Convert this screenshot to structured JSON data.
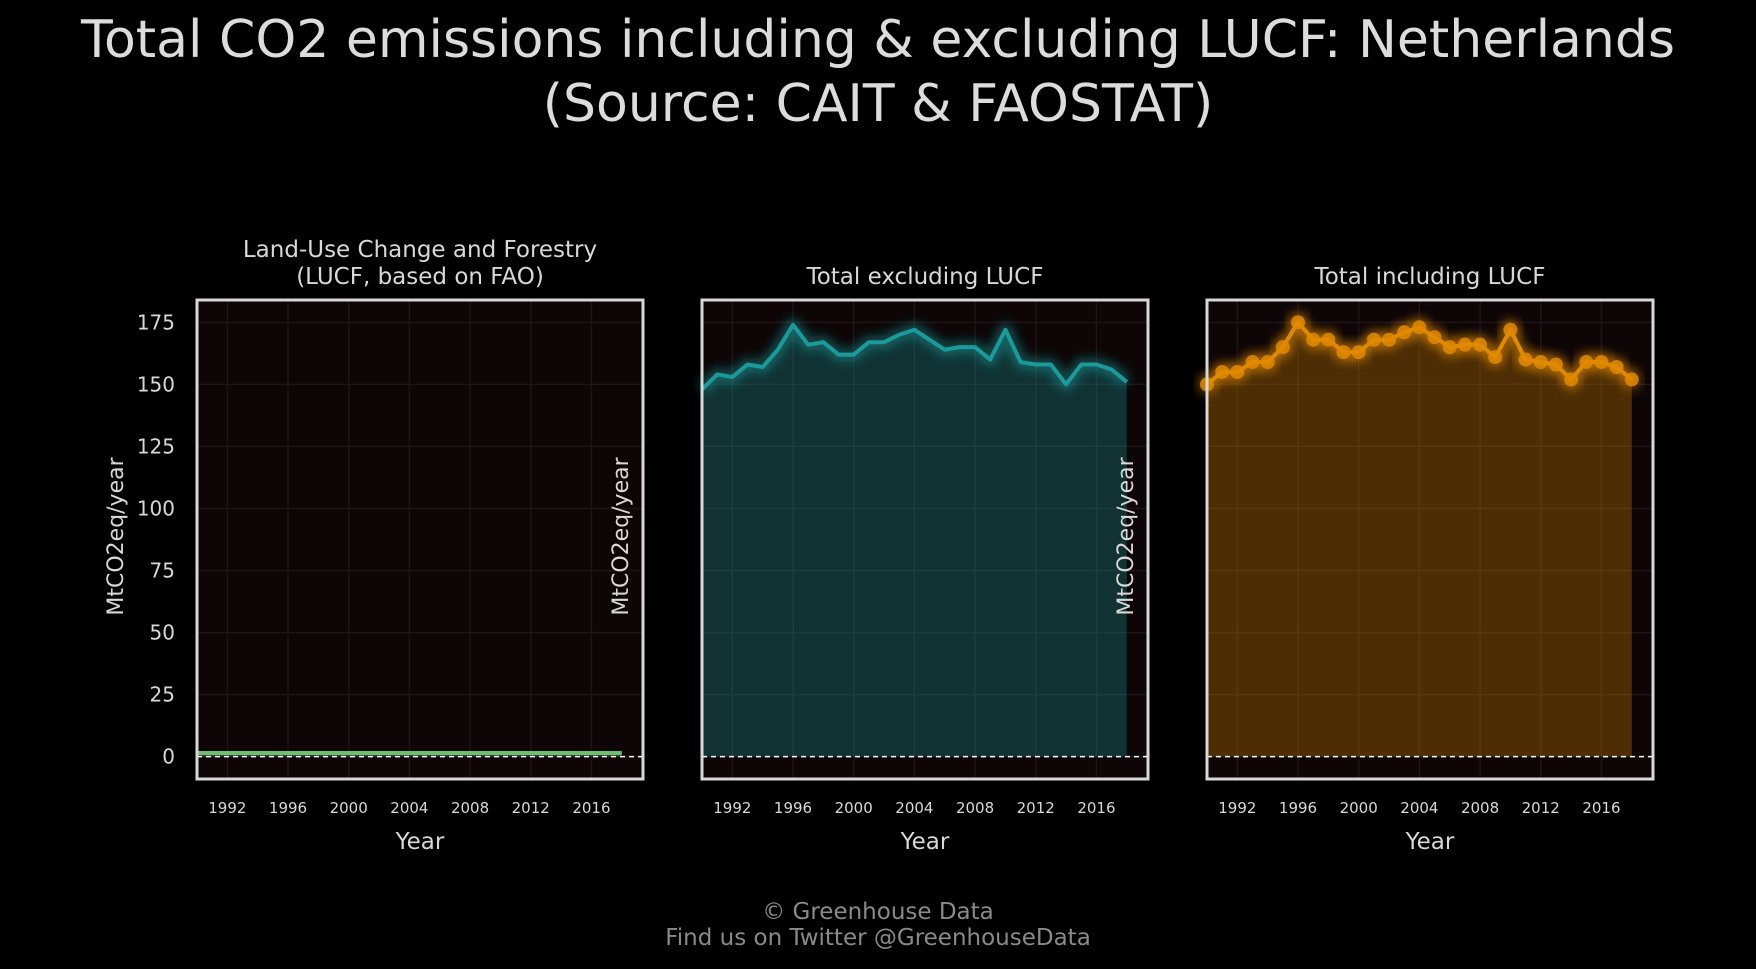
{
  "title_line1": "Total CO2 emissions including & excluding LUCF: Netherlands",
  "title_line2": "(Source: CAIT & FAOSTAT)",
  "footer": {
    "line1": "© Greenhouse Data",
    "line2": "Find us on Twitter @GreenhouseData"
  },
  "chart_data": [
    {
      "type": "area",
      "title": [
        "Land-Use Change and Forestry",
        "(LUCF, based on FAO)"
      ],
      "xlabel": "Year",
      "ylabel": "MtCO2eq/year",
      "x": [
        1990,
        1991,
        1992,
        1993,
        1994,
        1995,
        1996,
        1997,
        1998,
        1999,
        2000,
        2001,
        2002,
        2003,
        2004,
        2005,
        2006,
        2007,
        2008,
        2009,
        2010,
        2011,
        2012,
        2013,
        2014,
        2015,
        2016,
        2017,
        2018
      ],
      "values": [
        1.5,
        1.5,
        1.5,
        1.5,
        1.5,
        1.5,
        1.5,
        1.5,
        1.5,
        1.5,
        1.5,
        1.5,
        1.5,
        1.5,
        1.5,
        1.5,
        1.5,
        1.5,
        1.5,
        1.5,
        1.5,
        1.5,
        1.5,
        1.5,
        1.5,
        1.5,
        1.5,
        1.5,
        1.5
      ],
      "color": "#6fbf73",
      "markers": false,
      "xticks": [
        1992,
        1996,
        2000,
        2004,
        2008,
        2012,
        2016
      ],
      "yticks": [
        0,
        25,
        50,
        75,
        100,
        125,
        150,
        175
      ],
      "show_yticks": true,
      "ylim": [
        -9,
        184
      ],
      "xlim": [
        1990,
        2019.4
      ],
      "grid": true
    },
    {
      "type": "area",
      "title": [
        "Total excluding LUCF"
      ],
      "xlabel": "Year",
      "ylabel": "MtCO2eq/year",
      "x": [
        1990,
        1991,
        1992,
        1993,
        1994,
        1995,
        1996,
        1997,
        1998,
        1999,
        2000,
        2001,
        2002,
        2003,
        2004,
        2005,
        2006,
        2007,
        2008,
        2009,
        2010,
        2011,
        2012,
        2013,
        2014,
        2015,
        2016,
        2017,
        2018
      ],
      "values": [
        148,
        154,
        153,
        158,
        157,
        164,
        174,
        166,
        167,
        162,
        162,
        167,
        167,
        170,
        172,
        168,
        164,
        165,
        165,
        160,
        172,
        159,
        158,
        158,
        150,
        158,
        158,
        156,
        151
      ],
      "color": "#1a9a9a",
      "markers": false,
      "xticks": [
        1992,
        1996,
        2000,
        2004,
        2008,
        2012,
        2016
      ],
      "yticks": [
        0,
        25,
        50,
        75,
        100,
        125,
        150,
        175
      ],
      "show_yticks": false,
      "ylim": [
        -9,
        184
      ],
      "xlim": [
        1990,
        2019.4
      ],
      "grid": true
    },
    {
      "type": "area",
      "title": [
        "Total including LUCF"
      ],
      "xlabel": "Year",
      "ylabel": "MtCO2eq/year",
      "x": [
        1990,
        1991,
        1992,
        1993,
        1994,
        1995,
        1996,
        1997,
        1998,
        1999,
        2000,
        2001,
        2002,
        2003,
        2004,
        2005,
        2006,
        2007,
        2008,
        2009,
        2010,
        2011,
        2012,
        2013,
        2014,
        2015,
        2016,
        2017,
        2018
      ],
      "values": [
        150,
        155,
        155,
        159,
        159,
        165,
        175,
        168,
        168,
        163,
        163,
        168,
        168,
        171,
        173,
        169,
        165,
        166,
        166,
        161,
        172,
        160,
        159,
        158,
        152,
        159,
        159,
        157,
        152
      ],
      "color": "#e08a00",
      "markers": true,
      "xticks": [
        1992,
        1996,
        2000,
        2004,
        2008,
        2012,
        2016
      ],
      "yticks": [
        0,
        25,
        50,
        75,
        100,
        125,
        150,
        175
      ],
      "show_yticks": false,
      "ylim": [
        -9,
        184
      ],
      "xlim": [
        1990,
        2019.4
      ],
      "grid": true
    }
  ]
}
